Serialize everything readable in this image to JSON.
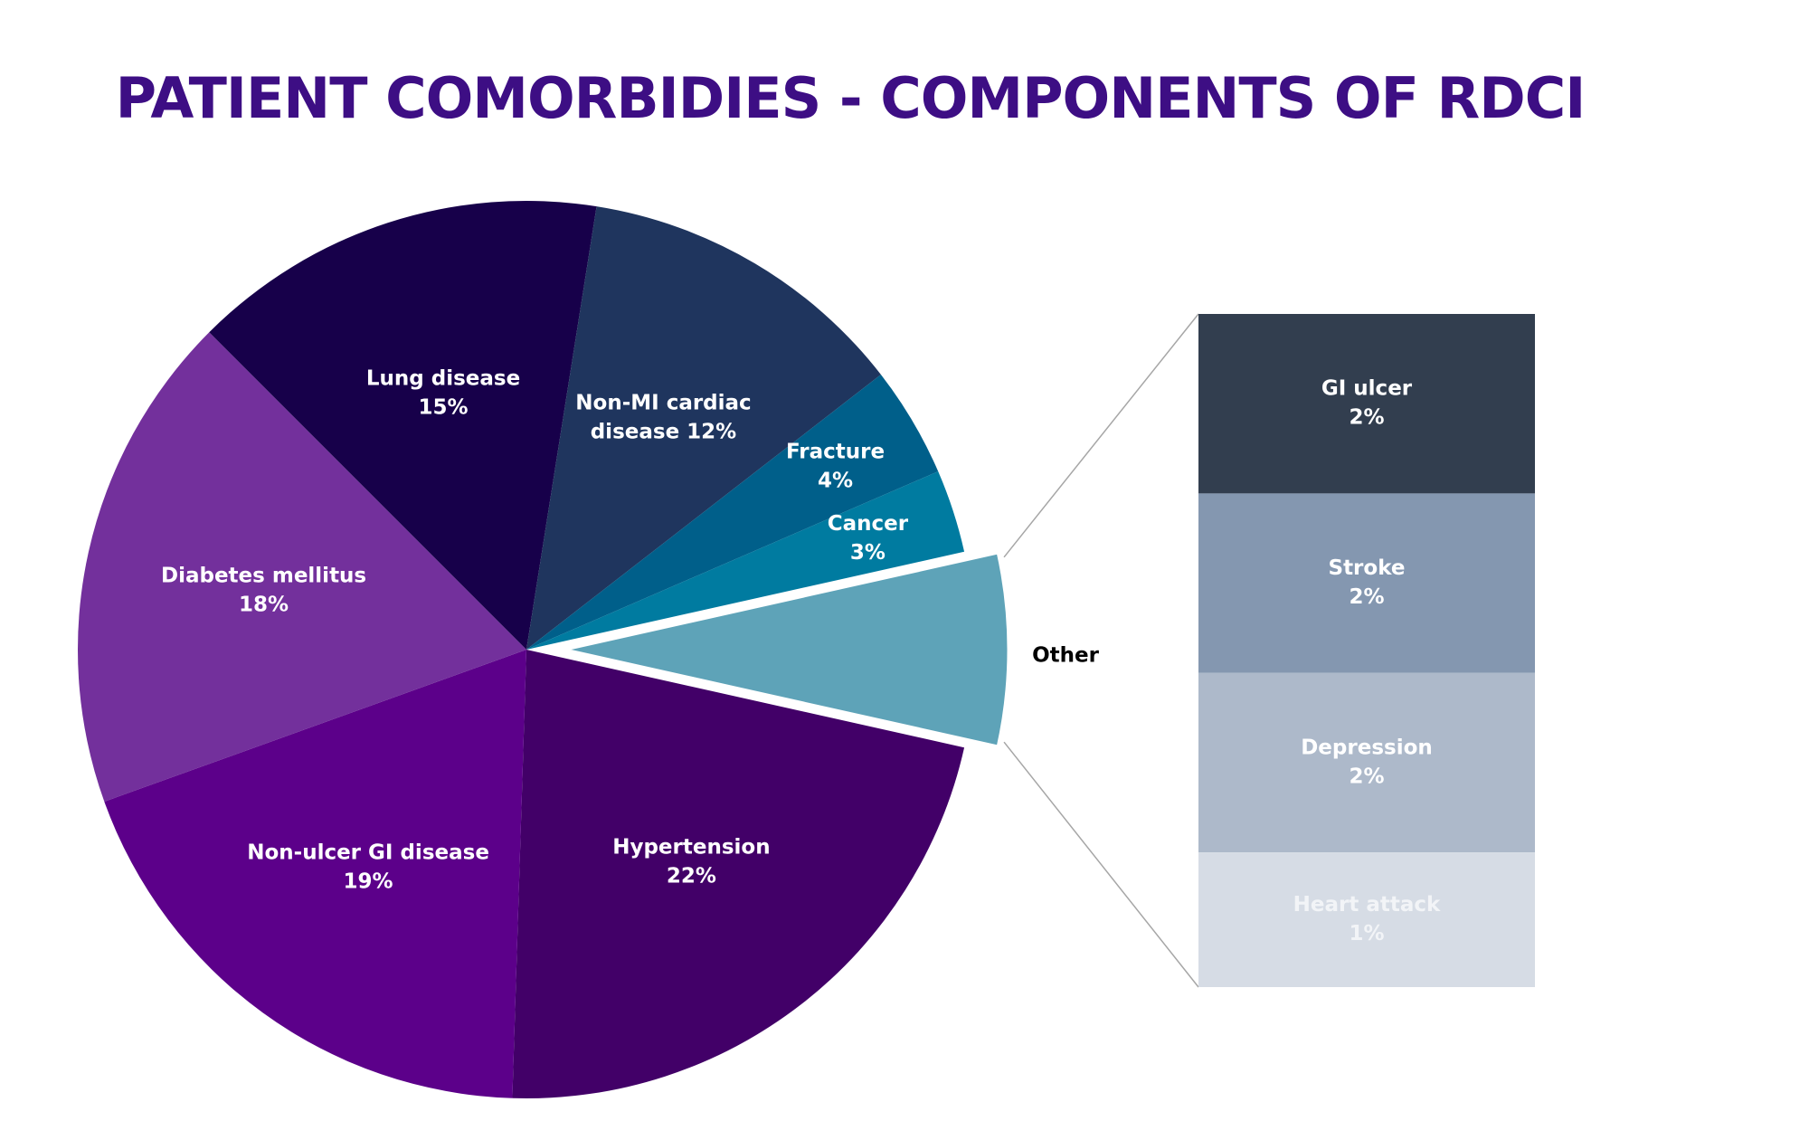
{
  "chart_data": {
    "type": "pie",
    "title": "PATIENT COMORBIDIES - COMPONENTS OF RDCI",
    "slices": [
      {
        "name": "Hypertension",
        "label_lines": [
          "Hypertension",
          "22%"
        ],
        "value": 22,
        "color": "#420068"
      },
      {
        "name": "Non-ulcer GI disease",
        "label_lines": [
          "Non-ulcer GI disease",
          "19%"
        ],
        "value": 19,
        "color": "#5c008a"
      },
      {
        "name": "Diabetes mellitus",
        "label_lines": [
          "Diabetes mellitus",
          "18%"
        ],
        "value": 18,
        "color": "#73309c"
      },
      {
        "name": "Lung disease",
        "label_lines": [
          "Lung disease",
          "15%"
        ],
        "value": 15,
        "color": "#17004a"
      },
      {
        "name": "Non-MI cardiac disease",
        "label_lines": [
          "Non-MI cardiac",
          "disease 12%"
        ],
        "value": 12,
        "color": "#1f355e"
      },
      {
        "name": "Fracture",
        "label_lines": [
          "Fracture",
          "4%"
        ],
        "value": 4,
        "color": "#005f8a"
      },
      {
        "name": "Cancer",
        "label_lines": [
          "Cancer",
          "3%"
        ],
        "value": 3,
        "color": "#007ba0"
      },
      {
        "name": "Other",
        "label_lines": [],
        "value": 7,
        "color": "#5ea3b8",
        "exploded": true
      }
    ],
    "other": {
      "label": "Other",
      "breakdown": [
        {
          "name": "GI ulcer",
          "label_lines": [
            "GI ulcer",
            "2%"
          ],
          "value": 2,
          "color": "#323e4f",
          "text_color": "#ffffff"
        },
        {
          "name": "Stroke",
          "label_lines": [
            "Stroke",
            "2%"
          ],
          "value": 2,
          "color": "#8497b0",
          "text_color": "#ffffff"
        },
        {
          "name": "Depression",
          "label_lines": [
            "Depression",
            "2%"
          ],
          "value": 2,
          "color": "#adb9ca",
          "text_color": "#ffffff"
        },
        {
          "name": "Heart attack",
          "label_lines": [
            "Heart attack",
            "1%"
          ],
          "value": 1,
          "color": "#d6dce5",
          "text_color": "#f2f4f7"
        }
      ]
    },
    "connector_color": "#a6a6a6"
  }
}
